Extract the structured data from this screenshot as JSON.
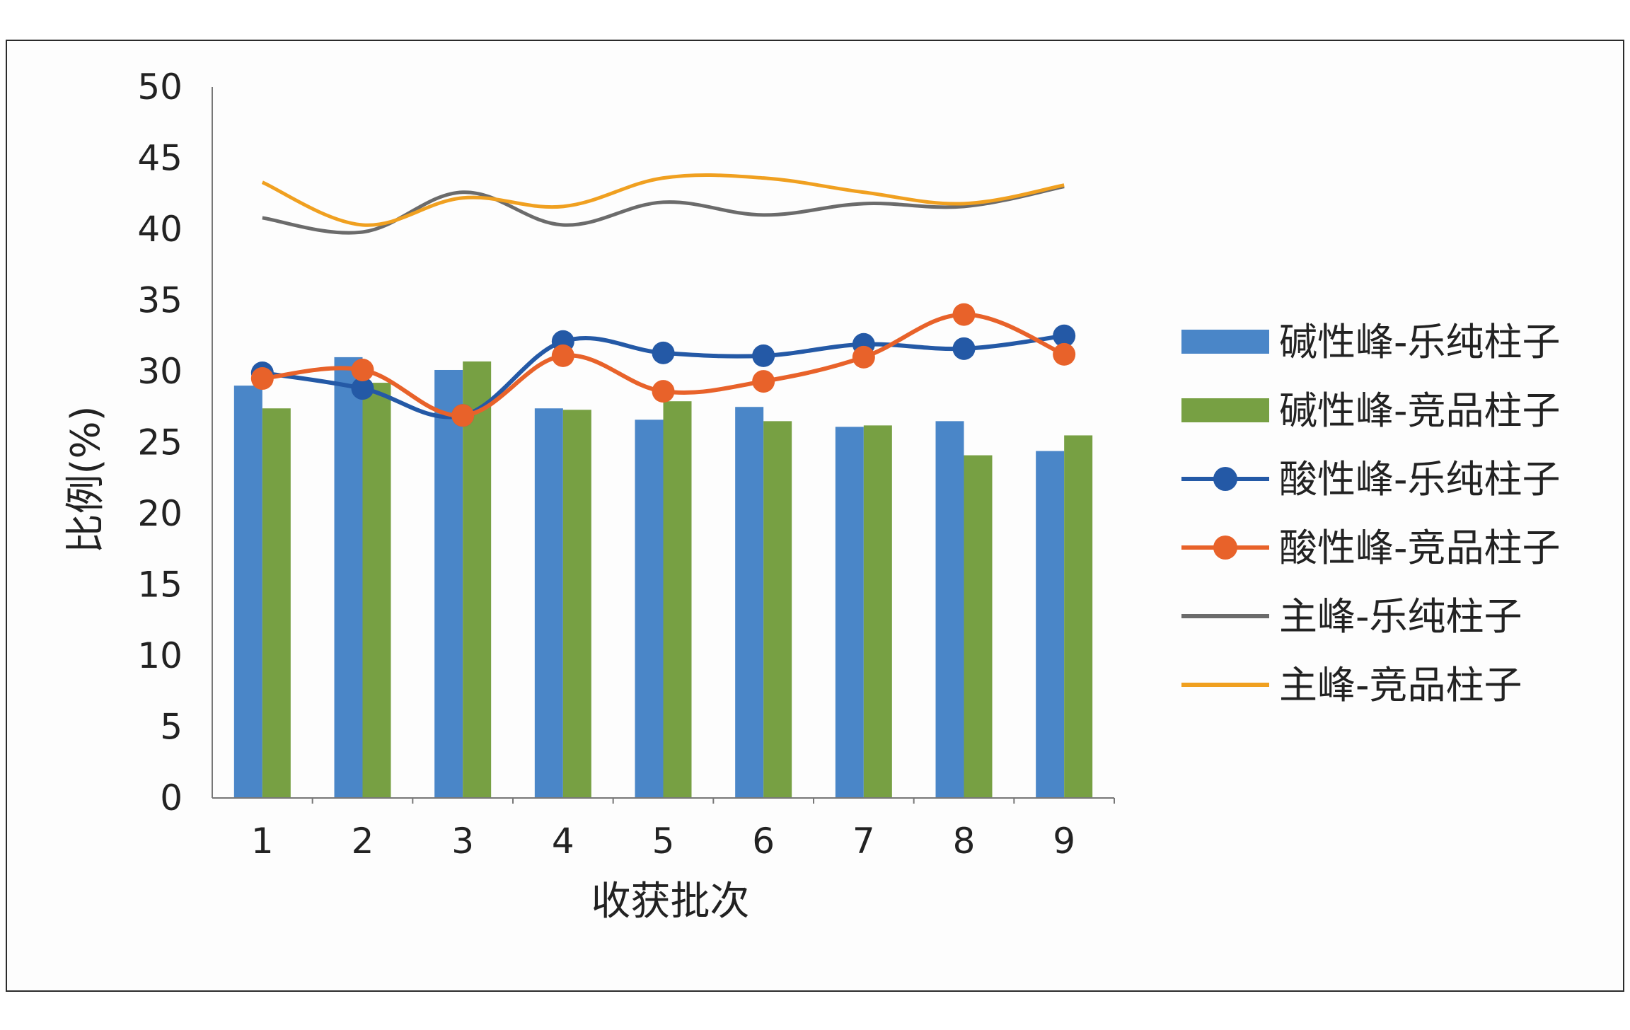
{
  "chart_data": {
    "type": "bar",
    "categories": [
      "1",
      "2",
      "3",
      "4",
      "5",
      "6",
      "7",
      "8",
      "9"
    ],
    "xlabel": "收获批次",
    "ylabel": "比例(%)",
    "ylim": [
      0,
      50
    ],
    "yticks": [
      0,
      5,
      10,
      15,
      20,
      25,
      30,
      35,
      40,
      45,
      50
    ],
    "grid": false,
    "legend_position": "right",
    "bar_series": [
      {
        "name": "碱性峰-乐纯柱子",
        "color": "#4a86c8",
        "values": [
          29,
          31,
          30.1,
          27.4,
          26.6,
          27.5,
          26.1,
          26.5,
          24.4
        ]
      },
      {
        "name": "碱性峰-竞品柱子",
        "color": "#77a043",
        "values": [
          27.4,
          29.2,
          30.7,
          27.3,
          27.9,
          26.5,
          26.2,
          24.1,
          25.5
        ]
      }
    ],
    "line_series": [
      {
        "name": "酸性峰-乐纯柱子",
        "color": "#2459a6",
        "markers": true,
        "values": [
          29.9,
          28.8,
          26.9,
          32.1,
          31.3,
          31.1,
          31.9,
          31.6,
          32.5
        ]
      },
      {
        "name": "酸性峰-竞品柱子",
        "color": "#e8622a",
        "markers": true,
        "values": [
          29.5,
          30.1,
          26.9,
          31.1,
          28.6,
          29.3,
          31.0,
          34.0,
          31.2
        ]
      },
      {
        "name": "主峰-乐纯柱子",
        "color": "#6b6b6b",
        "markers": false,
        "values": [
          40.8,
          39.8,
          42.6,
          40.3,
          41.9,
          41.0,
          41.8,
          41.6,
          43.0
        ]
      },
      {
        "name": "主峰-竞品柱子",
        "color": "#f0a020",
        "markers": false,
        "values": [
          43.3,
          40.3,
          42.2,
          41.6,
          43.6,
          43.6,
          42.6,
          41.8,
          43.1
        ]
      }
    ]
  }
}
